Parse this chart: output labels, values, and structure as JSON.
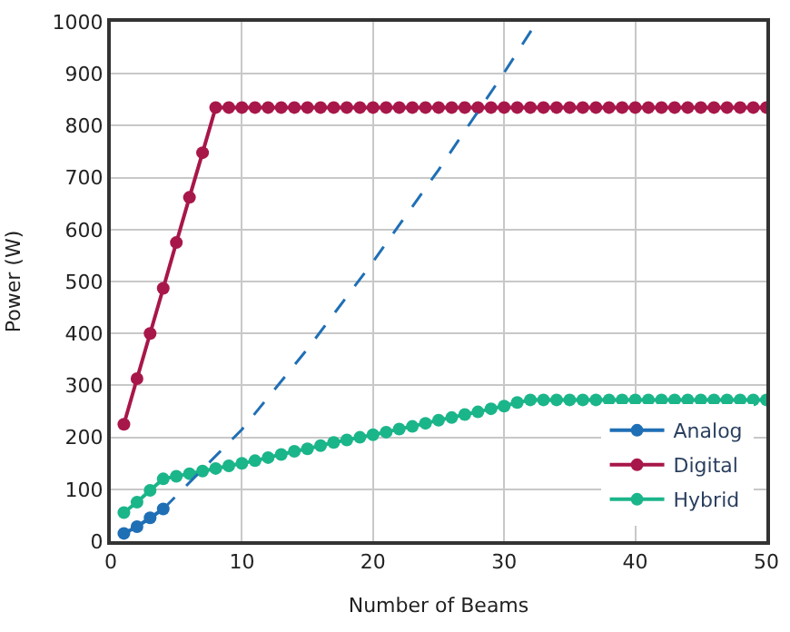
{
  "chart_data": {
    "type": "line",
    "xlabel": "Number of Beams",
    "ylabel": "Power (W)",
    "xlim": [
      0,
      50
    ],
    "xticks": [
      0,
      10,
      20,
      30,
      40,
      50
    ],
    "ylim": [
      0,
      1000
    ],
    "yticks": [
      0,
      100,
      200,
      300,
      400,
      500,
      600,
      700,
      800,
      900,
      1000
    ],
    "grid": true,
    "legend": "bottom right",
    "marker": "circle",
    "line_style": "solid",
    "series": [
      {
        "name": "Analog",
        "color": "#1f6fb5",
        "x": [
          1,
          2,
          3,
          4
        ],
        "values": [
          15,
          28,
          45,
          62
        ]
      },
      {
        "name": "Digital",
        "color": "#a8174a",
        "x": [
          1,
          2,
          3,
          4,
          5,
          6,
          7,
          8,
          9,
          10,
          11,
          12,
          13,
          14,
          15,
          16,
          17,
          18,
          19,
          20,
          21,
          22,
          23,
          24,
          25,
          26,
          27,
          28,
          29,
          30,
          31,
          32,
          33,
          34,
          35,
          36,
          37,
          38,
          39,
          40,
          41,
          42,
          43,
          44,
          45,
          46,
          47,
          48,
          49,
          50
        ],
        "values": [
          225,
          313,
          400,
          487,
          575,
          662,
          748,
          835,
          835,
          835,
          835,
          835,
          835,
          835,
          835,
          835,
          835,
          835,
          835,
          835,
          835,
          835,
          835,
          835,
          835,
          835,
          835,
          835,
          835,
          835,
          835,
          835,
          835,
          835,
          835,
          835,
          835,
          835,
          835,
          835,
          835,
          835,
          835,
          835,
          835,
          835,
          835,
          835,
          835,
          835
        ]
      },
      {
        "name": "Hybrid",
        "color": "#1bb58a",
        "x": [
          1,
          2,
          3,
          4,
          5,
          6,
          7,
          8,
          9,
          10,
          11,
          12,
          13,
          14,
          15,
          16,
          17,
          18,
          19,
          20,
          21,
          22,
          23,
          24,
          25,
          26,
          27,
          28,
          29,
          30,
          31,
          32,
          33,
          34,
          35,
          36,
          37,
          38,
          39,
          40,
          41,
          42,
          43,
          44,
          45,
          46,
          47,
          48,
          49,
          50
        ],
        "values": [
          55,
          75,
          98,
          120,
          125,
          130,
          135,
          140,
          145,
          150,
          155,
          161,
          167,
          173,
          178,
          184,
          190,
          195,
          200,
          205,
          210,
          216,
          221,
          227,
          233,
          238,
          244,
          249,
          255,
          260,
          267,
          272,
          272,
          272,
          272,
          272,
          272,
          272,
          272,
          272,
          272,
          272,
          272,
          272,
          272,
          272,
          272,
          272,
          272,
          272
        ]
      },
      {
        "color": "#1f6fb5",
        "x": [
          4,
          10,
          15,
          20,
          25,
          30,
          32.5
        ],
        "values": [
          62,
          215,
          370,
          538,
          715,
          902,
          1000
        ],
        "marker": "none",
        "line_style": "dashed"
      }
    ]
  }
}
